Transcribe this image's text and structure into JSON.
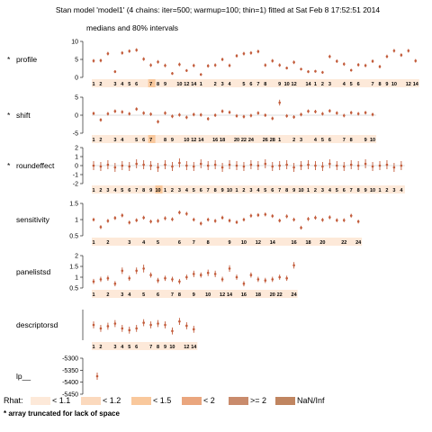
{
  "title": "Stan model 'model1' (4 chains: iter=500; warmup=100; thin=1) fitted at Sat Feb  8 17:52:51 2014",
  "subtitle": "medians and 80% intervals",
  "rhat_legend": {
    "label": "Rhat:",
    "items": [
      {
        "label": "< 1.1",
        "color": "#fde9d9"
      },
      {
        "label": "< 1.2",
        "color": "#fbd9bd"
      },
      {
        "label": "< 1.5",
        "color": "#f9c89c"
      },
      {
        "label": "< 2",
        "color": "#eaa67e"
      },
      {
        "label": ">= 2",
        "color": "#c98b6c"
      },
      {
        "label": "NaN/Inf",
        "color": "#c08560"
      }
    ]
  },
  "footnote": "*  array truncated for lack of space",
  "colors": {
    "estimate": "#c25b3a",
    "rhat_band": "#fde9d9",
    "rhat_band_dark": "#f9c89c",
    "footnote": "#c24400"
  },
  "chart_data": [
    {
      "type": "scatter",
      "param": "profile",
      "truncated": true,
      "ylim": [
        0,
        10
      ],
      "yticks": [
        "0",
        "5",
        "10"
      ],
      "index_labels": [
        "1",
        "2",
        "3",
        "4",
        "5",
        "6",
        "7",
        "8",
        "9",
        "10",
        "12",
        "14",
        "1",
        "2",
        "3",
        "4",
        "5",
        "6",
        "7",
        "8",
        "9",
        "10",
        "12",
        "14",
        "1",
        "2",
        "3",
        "4",
        "5",
        "6",
        "7",
        "8",
        "9",
        "10",
        "12",
        "14"
      ],
      "medians": [
        4.6,
        4.7,
        6.6,
        1.6,
        6.8,
        7.3,
        7.6,
        5.1,
        3.4,
        4.3,
        3.3,
        1.1,
        3.6,
        1.9,
        3.3,
        0.8,
        3.2,
        3.4,
        5.0,
        3.3,
        6.0,
        6.6,
        6.8,
        7.2,
        3.4,
        4.6,
        3.4,
        2.6,
        4.2,
        2.3,
        1.6,
        1.7,
        1.4,
        5.8,
        4.5,
        3.7,
        2.0,
        3.5,
        3.3,
        4.5,
        3.0,
        5.8,
        7.4,
        6.2,
        7.4,
        4.6
      ],
      "half_widths": [
        0.5,
        0.5,
        0.5,
        0.4,
        0.5,
        0.5,
        0.5,
        0.5,
        0.5,
        0.5,
        0.5,
        0.4,
        0.5,
        0.4,
        0.5,
        0.4,
        0.5,
        0.5,
        0.5,
        0.5,
        0.5,
        0.5,
        0.5,
        0.5,
        0.5,
        0.5,
        0.5,
        0.4,
        0.5,
        0.4,
        0.4,
        0.4,
        0.4,
        0.5,
        0.5,
        0.5,
        0.4,
        0.5,
        0.5,
        0.5,
        0.5,
        0.5,
        0.5,
        0.5,
        0.5,
        0.5
      ],
      "rhat_flags": [
        8
      ]
    },
    {
      "type": "scatter",
      "param": "shift",
      "truncated": true,
      "ylim": [
        -5,
        5
      ],
      "yticks": [
        "-5",
        "0",
        "5"
      ],
      "index_labels": [
        "1",
        "2",
        "3",
        "4",
        "5",
        "6",
        "7",
        "8",
        "9",
        "10",
        "12",
        "14",
        "16",
        "18",
        "20",
        "22",
        "24",
        "26",
        "28",
        "1",
        "2",
        "3",
        "4",
        "5",
        "6",
        "7",
        "8",
        "9",
        "10"
      ],
      "medians": [
        0.5,
        -1.3,
        0.4,
        1.1,
        0.9,
        0.4,
        1.7,
        0.6,
        0.3,
        -1.8,
        0.6,
        -0.3,
        0.1,
        -0.6,
        0.2,
        0.1,
        -1.0,
        0.0,
        1.1,
        0.8,
        -0.2,
        -0.4,
        -0.1,
        0.6,
        0.0,
        -0.9,
        3.5,
        -0.2,
        -0.5,
        0.2,
        1.1,
        1.0,
        0.4,
        1.2,
        0.6,
        -0.1,
        0.7,
        0.4,
        0.7,
        0.2
      ],
      "half_widths": [
        0.5,
        0.5,
        0.5,
        0.5,
        0.5,
        0.5,
        0.5,
        0.5,
        0.5,
        0.5,
        0.5,
        0.5,
        0.5,
        0.5,
        0.5,
        0.5,
        0.5,
        0.5,
        0.5,
        0.5,
        0.5,
        0.5,
        0.5,
        0.5,
        0.5,
        0.5,
        0.8,
        0.5,
        0.5,
        0.5,
        0.5,
        0.5,
        0.5,
        0.5,
        0.5,
        0.5,
        0.5,
        0.5,
        0.5,
        0.5
      ],
      "rhat_flags": [
        8
      ]
    },
    {
      "type": "scatter",
      "param": "roundeffect",
      "truncated": true,
      "ylim": [
        -2,
        2
      ],
      "yticks": [
        "-2",
        "-1",
        "0",
        "1",
        "2"
      ],
      "index_labels": [
        "1",
        "2",
        "3",
        "4",
        "5",
        "6",
        "7",
        "8",
        "9",
        "10",
        "1",
        "2",
        "3",
        "4",
        "5",
        "6",
        "7",
        "8",
        "9",
        "10",
        "1",
        "2",
        "3",
        "4",
        "5",
        "6",
        "7",
        "8",
        "9",
        "10",
        "1",
        "2",
        "3",
        "4",
        "5",
        "6",
        "7",
        "8",
        "9",
        "10",
        "1",
        "2",
        "3",
        "4"
      ],
      "medians": [
        0.0,
        -0.1,
        0.1,
        -0.2,
        0.0,
        -0.1,
        0.2,
        0.1,
        0.0,
        -0.2,
        0.1,
        -0.1,
        0.3,
        0.0,
        -0.1,
        0.2,
        0.0,
        0.1,
        -0.2,
        0.1,
        0.0,
        -0.1,
        0.1,
        0.0,
        0.2,
        -0.1,
        0.0,
        0.1,
        -0.2,
        0.0,
        0.1,
        0.0,
        -0.1,
        0.2,
        0.0,
        -0.1,
        0.1,
        0.0,
        0.2,
        -0.1,
        0.0,
        0.1,
        -0.2,
        0.0
      ],
      "half_widths": [
        0.5,
        0.5,
        0.5,
        0.5,
        0.5,
        0.5,
        0.5,
        0.5,
        0.5,
        0.5,
        0.5,
        0.5,
        0.5,
        0.5,
        0.5,
        0.5,
        0.5,
        0.5,
        0.5,
        0.5,
        0.5,
        0.5,
        0.5,
        0.5,
        0.5,
        0.5,
        0.5,
        0.5,
        0.5,
        0.5,
        0.5,
        0.5,
        0.5,
        0.5,
        0.5,
        0.5,
        0.5,
        0.5,
        0.5,
        0.5,
        0.5,
        0.5,
        0.5,
        0.5
      ],
      "rhat_flags": [
        9
      ]
    },
    {
      "type": "scatter",
      "param": "sensitivity",
      "truncated": false,
      "ylim": [
        0.5,
        1.5
      ],
      "yticks": [
        "0.5",
        "1",
        "1.5"
      ],
      "index_labels": [
        "1",
        "2",
        "3",
        "4",
        "5",
        "6",
        "7",
        "8",
        "9",
        "10",
        "12",
        "14",
        "16",
        "18",
        "20",
        "22",
        "24"
      ],
      "medians": [
        1.0,
        0.77,
        0.96,
        1.05,
        1.13,
        0.91,
        0.98,
        1.06,
        0.94,
        0.96,
        1.04,
        1.01,
        1.22,
        1.18,
        1.0,
        0.88,
        1.0,
        0.96,
        1.06,
        0.97,
        0.92,
        1.0,
        1.12,
        1.14,
        1.16,
        1.11,
        0.97,
        1.1,
        1.0,
        0.75,
        1.02,
        1.06,
        0.99,
        1.07,
        0.98,
        0.98,
        1.12,
        0.94
      ],
      "half_widths": [
        0.06,
        0.06,
        0.06,
        0.06,
        0.06,
        0.06,
        0.06,
        0.06,
        0.06,
        0.06,
        0.06,
        0.06,
        0.06,
        0.06,
        0.06,
        0.06,
        0.06,
        0.06,
        0.06,
        0.06,
        0.06,
        0.06,
        0.06,
        0.06,
        0.06,
        0.06,
        0.06,
        0.06,
        0.06,
        0.06,
        0.06,
        0.06,
        0.06,
        0.06,
        0.06,
        0.06,
        0.06,
        0.06
      ]
    },
    {
      "type": "scatter",
      "param": "panelistsd",
      "truncated": false,
      "ylim": [
        0.5,
        2
      ],
      "yticks": [
        "0.5",
        "1",
        "1.5",
        "2"
      ],
      "index_labels": [
        "1",
        "2",
        "3",
        "4",
        "5",
        "6",
        "7",
        "8",
        "9",
        "10",
        "12",
        "14",
        "16",
        "18",
        "20",
        "22",
        "24"
      ],
      "medians": [
        0.8,
        0.9,
        0.95,
        0.7,
        1.3,
        0.95,
        1.3,
        1.4,
        1.1,
        0.85,
        0.95,
        0.9,
        0.8,
        1.0,
        1.15,
        1.1,
        1.2,
        1.15,
        0.9,
        1.4,
        1.0,
        0.7,
        1.1,
        0.9,
        0.85,
        0.9,
        1.0,
        0.95,
        1.55
      ],
      "half_widths": [
        0.12,
        0.12,
        0.12,
        0.12,
        0.15,
        0.12,
        0.15,
        0.18,
        0.12,
        0.12,
        0.12,
        0.12,
        0.12,
        0.12,
        0.15,
        0.12,
        0.15,
        0.15,
        0.12,
        0.15,
        0.12,
        0.12,
        0.12,
        0.12,
        0.12,
        0.12,
        0.12,
        0.12,
        0.15
      ]
    },
    {
      "type": "scatter",
      "param": "descriptorsd",
      "truncated": false,
      "ylim": [
        0.7,
        1.4
      ],
      "yticks": [],
      "index_labels": [
        "1",
        "2",
        "3",
        "4",
        "5",
        "6",
        "7",
        "8",
        "9",
        "10",
        "12",
        "14"
      ],
      "medians": [
        1.05,
        0.97,
        1.02,
        1.08,
        0.97,
        0.93,
        0.97,
        1.1,
        1.05,
        1.08,
        1.05,
        0.91,
        1.13,
        1.03,
        0.95
      ],
      "half_widths": [
        0.08,
        0.08,
        0.08,
        0.08,
        0.08,
        0.08,
        0.08,
        0.08,
        0.08,
        0.08,
        0.08,
        0.08,
        0.08,
        0.08,
        0.08
      ]
    },
    {
      "type": "scatter",
      "param": "lp__",
      "truncated": false,
      "ylim": [
        -5450,
        -5300
      ],
      "yticks": [
        "-5300",
        "-5350",
        "-5400",
        "-5450"
      ],
      "index_labels": [],
      "medians": [
        -5375
      ],
      "half_widths": [
        15
      ]
    }
  ]
}
